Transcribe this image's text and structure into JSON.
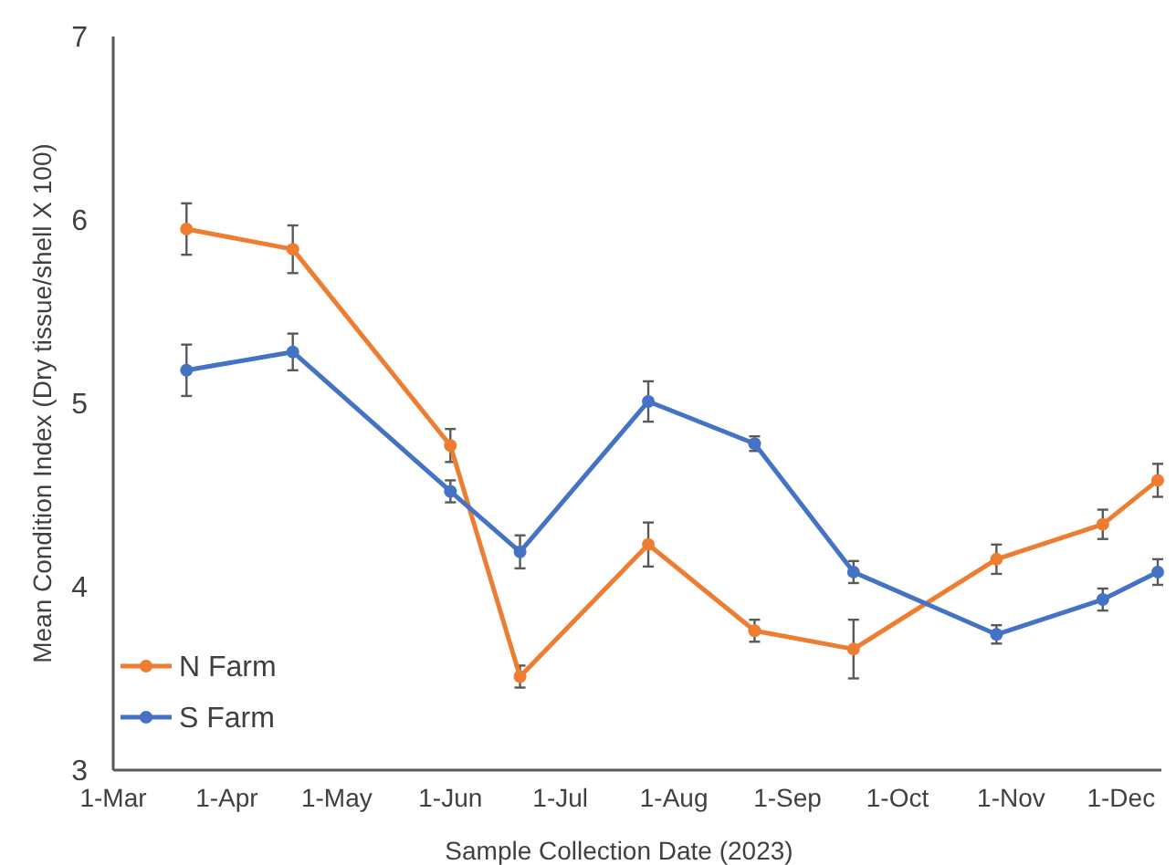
{
  "chart_data": {
    "type": "line",
    "xlabel": "Sample Collection Date (2023)",
    "ylabel": "Mean Condition Index (Dry tissue/shell X 100)",
    "x": [
      "2023-03-21",
      "2023-04-19",
      "2023-06-01",
      "2023-06-20",
      "2023-07-25",
      "2023-08-23",
      "2023-09-19",
      "2023-10-28",
      "2023-11-26",
      "2023-12-11"
    ],
    "series": [
      {
        "name": "N Farm",
        "color": "#ed7d31",
        "values": [
          5.95,
          5.84,
          4.77,
          3.51,
          4.23,
          3.76,
          3.66,
          4.15,
          4.34,
          4.58
        ],
        "errors": [
          0.14,
          0.13,
          0.09,
          0.06,
          0.12,
          0.06,
          0.16,
          0.08,
          0.08,
          0.09
        ]
      },
      {
        "name": "S Farm",
        "color": "#4472c4",
        "values": [
          5.18,
          5.28,
          4.52,
          4.19,
          5.01,
          4.78,
          4.08,
          3.74,
          3.93,
          4.08
        ],
        "errors": [
          0.14,
          0.1,
          0.06,
          0.09,
          0.11,
          0.04,
          0.06,
          0.05,
          0.06,
          0.07
        ]
      }
    ],
    "xlim": [
      "2023-03-01",
      "2023-12-12"
    ],
    "xticks": [
      {
        "value": "2023-03-01",
        "label": "1-Mar"
      },
      {
        "value": "2023-04-01",
        "label": "1-Apr"
      },
      {
        "value": "2023-05-01",
        "label": "1-May"
      },
      {
        "value": "2023-06-01",
        "label": "1-Jun"
      },
      {
        "value": "2023-07-01",
        "label": "1-Jul"
      },
      {
        "value": "2023-08-01",
        "label": "1-Aug"
      },
      {
        "value": "2023-09-01",
        "label": "1-Sep"
      },
      {
        "value": "2023-10-01",
        "label": "1-Oct"
      },
      {
        "value": "2023-11-01",
        "label": "1-Nov"
      },
      {
        "value": "2023-12-01",
        "label": "1-Dec"
      }
    ],
    "ylim": [
      3,
      7
    ],
    "yticks": [
      3,
      4,
      5,
      6,
      7
    ],
    "grid": false,
    "legend": "bottom left",
    "marker": "circle",
    "line_style": "solid"
  }
}
